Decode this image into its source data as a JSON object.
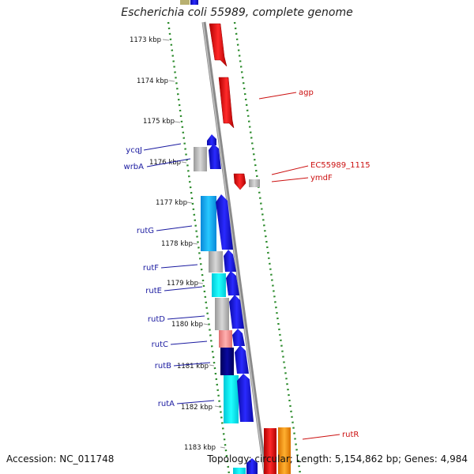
{
  "title": "Escherichia coli 55989, complete genome",
  "footer": {
    "accession": "Accession: NC_011748",
    "stats": "Topology: circular; Length: 5,154,862 bp; Genes: 4,984"
  },
  "tick_labels": [
    "1173 kbp",
    "1174 kbp",
    "1175 kbp",
    "1176 kbp",
    "1177 kbp",
    "1178 kbp",
    "1179 kbp",
    "1180 kbp",
    "1181 kbp",
    "1182 kbp",
    "1183 kbp"
  ],
  "gene_labels_left": [
    "ycqJ",
    "wrbA",
    "rutG",
    "rutF",
    "rutE",
    "rutD",
    "rutC",
    "rutB",
    "rutA"
  ],
  "gene_labels_right": [
    "agp",
    "EC55989_1115",
    "ymdF",
    "rutR"
  ],
  "colors": {
    "forward_blue": "#1414e6",
    "reverse_red": "#ee1111",
    "label_blue": "#1a1aa0",
    "label_red": "#cc1111",
    "backbone": "#8a8a8a",
    "scale_dots": "#2a8a2a"
  }
}
